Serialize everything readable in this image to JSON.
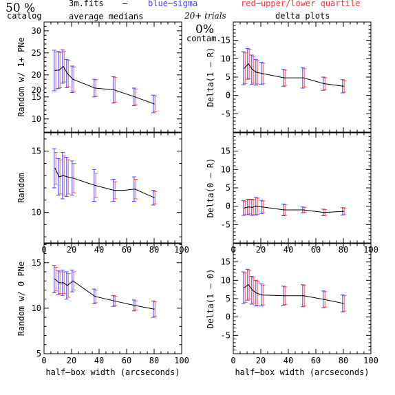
{
  "header": {
    "pct": "50 %",
    "catalog": "catalog",
    "file": "3m.fits",
    "dash": "–",
    "sigma": "blue–sigma",
    "quartile": "red–upper/lower quartile",
    "medians": "average medians",
    "trials": "20+ trials",
    "delta": "delta plots",
    "contam_pct": "0%",
    "contam": "contam."
  },
  "colors": {
    "sigma": "#4444ff",
    "quartile": "#ff3333",
    "line": "#000000"
  },
  "chart_data": [
    {
      "type": "line",
      "panel": "left-1",
      "ylabel": "Random w/ 1+ PNe",
      "xlabel": "",
      "xlim": [
        0,
        100
      ],
      "ylim": [
        7,
        32
      ],
      "xticks": [],
      "yticks": [
        10,
        15,
        20,
        25,
        30
      ],
      "x": [
        8,
        11,
        14,
        17,
        21,
        37,
        51,
        66,
        80
      ],
      "y": [
        21.0,
        21.1,
        21.9,
        20.3,
        19.0,
        17.0,
        16.6,
        15.0,
        13.4
      ],
      "sigma_err": [
        4.6,
        4.2,
        3.8,
        3.2,
        3.0,
        2.0,
        3.0,
        2.0,
        2.0
      ],
      "quart_err": [
        4.2,
        4.0,
        3.5,
        3.0,
        2.8,
        1.9,
        2.8,
        1.8,
        1.8
      ]
    },
    {
      "type": "line",
      "panel": "right-1",
      "ylabel": "Delta(1 – R)",
      "xlabel": "",
      "xlim": [
        0,
        100
      ],
      "ylim": [
        -10,
        20
      ],
      "xticks": [],
      "yticks": [
        -5,
        0,
        5,
        10,
        15
      ],
      "x": [
        8,
        11,
        14,
        17,
        21,
        37,
        51,
        66,
        80
      ],
      "y": [
        7.4,
        8.6,
        7.0,
        6.3,
        6.0,
        4.8,
        4.8,
        3.2,
        2.5
      ],
      "sigma_err": [
        4.5,
        4.2,
        4.0,
        3.5,
        3.0,
        2.3,
        2.8,
        1.8,
        1.8
      ],
      "quart_err": [
        4.2,
        4.0,
        3.7,
        3.2,
        2.8,
        2.1,
        2.5,
        1.6,
        1.6
      ]
    },
    {
      "type": "line",
      "panel": "left-2",
      "ylabel": "Random",
      "xlabel": "",
      "xlim": [
        0,
        100
      ],
      "ylim": [
        7.5,
        16.5
      ],
      "xticks": [
        0,
        20,
        40,
        60,
        80,
        100
      ],
      "yticks": [
        10,
        15,
        20
      ],
      "x": [
        8,
        11,
        14,
        17,
        21,
        37,
        51,
        58,
        66,
        80
      ],
      "y": [
        13.6,
        12.9,
        13.0,
        12.9,
        12.8,
        12.2,
        11.8,
        11.8,
        11.9,
        11.2
      ],
      "sigma_err": [
        1.6,
        1.5,
        1.9,
        1.6,
        1.4,
        1.3,
        0.9,
        0,
        1.0,
        0.6
      ],
      "quart_err": [
        1.3,
        1.4,
        1.6,
        1.4,
        1.2,
        1.0,
        0.7,
        0,
        0.8,
        0.5
      ]
    },
    {
      "type": "line",
      "panel": "right-2",
      "ylabel": "Delta(0 – R)",
      "xlabel": "",
      "xlim": [
        0,
        100
      ],
      "ylim": [
        -10,
        20
      ],
      "xticks": [
        0,
        20,
        40,
        60,
        80,
        100
      ],
      "yticks": [
        -5,
        0,
        5,
        10,
        15
      ],
      "x": [
        8,
        11,
        14,
        17,
        21,
        37,
        51,
        66,
        80
      ],
      "y": [
        -0.5,
        -0.2,
        -0.3,
        0.0,
        -0.2,
        -1.0,
        -1.0,
        -1.7,
        -1.4
      ],
      "sigma_err": [
        2.0,
        2.1,
        2.2,
        2.4,
        1.8,
        1.6,
        0.8,
        0.9,
        1.0
      ],
      "quart_err": [
        1.8,
        1.9,
        2.0,
        2.2,
        1.6,
        1.4,
        0.7,
        0.8,
        0.9
      ]
    },
    {
      "type": "line",
      "panel": "left-3",
      "ylabel": "Random w/ 0 PNe",
      "xlabel": "half–box width (arcseconds)",
      "xlim": [
        0,
        100
      ],
      "ylim": [
        5,
        17.1
      ],
      "xticks": [
        0,
        20,
        40,
        60,
        80,
        100
      ],
      "yticks": [
        5,
        10,
        15
      ],
      "x": [
        8,
        11,
        14,
        17,
        21,
        37,
        51,
        66,
        80
      ],
      "y": [
        13.2,
        12.8,
        12.8,
        12.5,
        13.0,
        11.3,
        10.8,
        10.3,
        9.9
      ],
      "sigma_err": [
        1.5,
        1.3,
        1.4,
        1.5,
        1.2,
        0.8,
        0.6,
        0.6,
        0.9
      ],
      "quart_err": [
        1.3,
        1.2,
        1.2,
        1.3,
        1.0,
        0.7,
        0.5,
        0.5,
        0.8
      ]
    },
    {
      "type": "line",
      "panel": "right-3",
      "ylabel": "Delta(1 – 0)",
      "xlabel": "half–box width (arcseconds)",
      "xlim": [
        0,
        100
      ],
      "ylim": [
        -10,
        20
      ],
      "xticks": [
        0,
        20,
        40,
        60,
        80,
        100
      ],
      "yticks": [
        -5,
        0,
        5,
        10,
        15
      ],
      "x": [
        8,
        11,
        14,
        17,
        21,
        37,
        51,
        66,
        80
      ],
      "y": [
        8.0,
        8.8,
        7.3,
        6.5,
        6.0,
        5.8,
        5.8,
        4.8,
        3.7
      ],
      "sigma_err": [
        4.3,
        4.2,
        3.8,
        3.5,
        3.0,
        2.6,
        3.0,
        2.3,
        2.3
      ],
      "quart_err": [
        4.0,
        3.9,
        3.5,
        3.3,
        2.7,
        2.4,
        2.8,
        2.1,
        2.1
      ]
    }
  ]
}
